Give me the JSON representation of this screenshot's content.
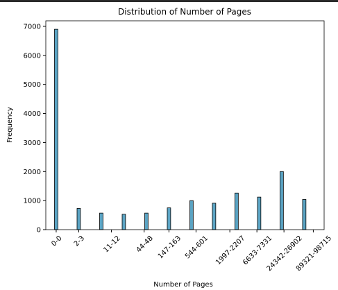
{
  "chart_data": {
    "type": "bar",
    "title": "Distribution of Number of Pages",
    "xlabel": "Number of Pages",
    "ylabel": "Frequency",
    "x": [
      0,
      1,
      2,
      3,
      4,
      5,
      6,
      7,
      8,
      9,
      10,
      11
    ],
    "values": [
      6900,
      730,
      570,
      530,
      570,
      750,
      1000,
      910,
      1260,
      1120,
      2000,
      1040
    ],
    "color": "#5ba4c4",
    "edgecolor": "#000000",
    "bar_width": 0.15,
    "xlim": [
      -0.46,
      11.88
    ],
    "xticks": [
      {
        "value": 0,
        "label": "0-0"
      },
      {
        "value": 1,
        "label": "2-3"
      },
      {
        "value": 2.45,
        "label": "11-12"
      },
      {
        "value": 3.9,
        "label": "44-48"
      },
      {
        "value": 5,
        "label": "147-163"
      },
      {
        "value": 6.2,
        "label": "544-601"
      },
      {
        "value": 7.7,
        "label": "1997-2207"
      },
      {
        "value": 8.9,
        "label": "6633-7331"
      },
      {
        "value": 10.1,
        "label": "24342-26902"
      },
      {
        "value": 11.4,
        "label": "89321-98715"
      }
    ],
    "ylim": [
      0,
      7190
    ],
    "yticks": [
      0,
      1000,
      2000,
      3000,
      4000,
      5000,
      6000,
      7000
    ],
    "grid": false
  }
}
